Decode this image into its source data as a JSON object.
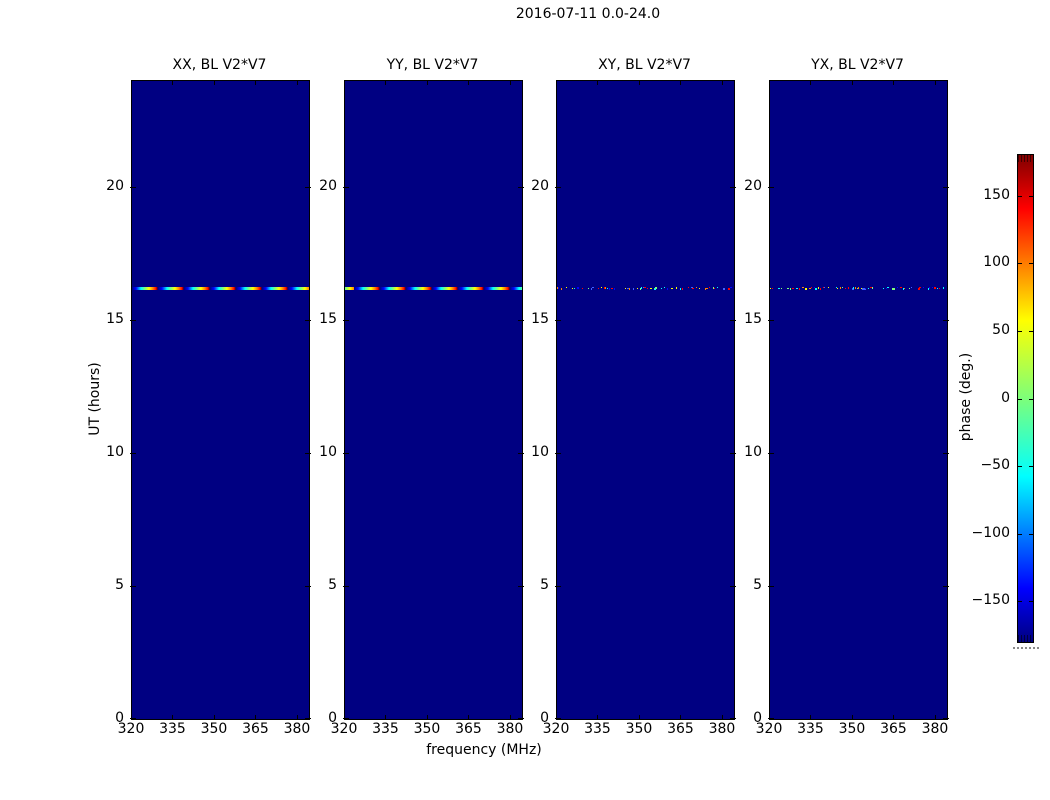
{
  "chart_data": {
    "type": "heatmap",
    "title": "2016-07-11 0.0-24.0",
    "panels": [
      {
        "id": "xx",
        "title": "XX, BL V2*V7",
        "event": "phase-ramp"
      },
      {
        "id": "yy",
        "title": "YY, BL V2*V7",
        "event": "phase-ramp"
      },
      {
        "id": "xy",
        "title": "XY, BL V2*V7",
        "event": "noise-speckle"
      },
      {
        "id": "yx",
        "title": "YX, BL V2*V7",
        "event": "noise-speckle"
      }
    ],
    "x_axis": {
      "label": "frequency (MHz)",
      "range": [
        320,
        384
      ],
      "ticks": [
        320,
        335,
        350,
        365,
        380
      ],
      "tick_labels": [
        "320",
        "335",
        "350",
        "365",
        "380"
      ]
    },
    "y_axis": {
      "label": "UT (hours)",
      "range": [
        0,
        24
      ],
      "ticks": [
        0,
        5,
        10,
        15,
        20
      ],
      "tick_labels": [
        "0",
        "5",
        "10",
        "15",
        "20"
      ]
    },
    "event_ut_hours": 16.2,
    "background": {
      "value_deg": -180,
      "color": "#000082"
    },
    "colormap": {
      "name": "jet",
      "positions": [
        0,
        0.11,
        0.34,
        0.5,
        0.66,
        0.89,
        1
      ],
      "colors": [
        "#000080",
        "#0000ff",
        "#00ffff",
        "#7dff7a",
        "#ffff00",
        "#ff0000",
        "#800000"
      ]
    },
    "colorbar": {
      "label": "phase (deg.)",
      "range_deg": [
        -180,
        180
      ],
      "ticks": [
        150,
        100,
        50,
        0,
        -50,
        -100,
        -150
      ],
      "tick_labels": [
        "150",
        "100",
        "50",
        "0",
        "−50",
        "−100",
        "−150"
      ]
    }
  }
}
